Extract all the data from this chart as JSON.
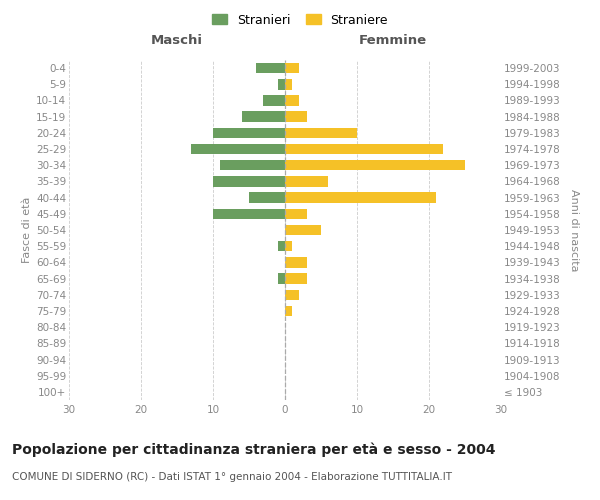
{
  "age_groups": [
    "100+",
    "95-99",
    "90-94",
    "85-89",
    "80-84",
    "75-79",
    "70-74",
    "65-69",
    "60-64",
    "55-59",
    "50-54",
    "45-49",
    "40-44",
    "35-39",
    "30-34",
    "25-29",
    "20-24",
    "15-19",
    "10-14",
    "5-9",
    "0-4"
  ],
  "birth_years": [
    "≤ 1903",
    "1904-1908",
    "1909-1913",
    "1914-1918",
    "1919-1923",
    "1924-1928",
    "1929-1933",
    "1934-1938",
    "1939-1943",
    "1944-1948",
    "1949-1953",
    "1954-1958",
    "1959-1963",
    "1964-1968",
    "1969-1973",
    "1974-1978",
    "1979-1983",
    "1984-1988",
    "1989-1993",
    "1994-1998",
    "1999-2003"
  ],
  "males": [
    0,
    0,
    0,
    0,
    0,
    0,
    0,
    1,
    0,
    1,
    0,
    10,
    5,
    10,
    9,
    13,
    10,
    6,
    3,
    1,
    4
  ],
  "females": [
    0,
    0,
    0,
    0,
    0,
    1,
    2,
    3,
    3,
    1,
    5,
    3,
    21,
    6,
    25,
    22,
    10,
    3,
    2,
    1,
    2
  ],
  "male_color": "#6a9e5f",
  "female_color": "#f5c127",
  "xlim": 30,
  "title": "Popolazione per cittadinanza straniera per età e sesso - 2004",
  "subtitle": "COMUNE DI SIDERNO (RC) - Dati ISTAT 1° gennaio 2004 - Elaborazione TUTTITALIA.IT",
  "xlabel_left": "Maschi",
  "xlabel_right": "Femmine",
  "ylabel_left": "Fasce di età",
  "ylabel_right": "Anni di nascita",
  "legend_males": "Stranieri",
  "legend_females": "Straniere",
  "background_color": "#ffffff",
  "grid_color": "#cccccc",
  "tick_color": "#888888",
  "header_color": "#555555",
  "title_color": "#222222",
  "title_fontsize": 10,
  "subtitle_fontsize": 7.5,
  "axis_label_fontsize": 8,
  "tick_fontsize": 7.5,
  "header_fontsize": 9.5,
  "legend_fontsize": 9,
  "bar_height": 0.65
}
